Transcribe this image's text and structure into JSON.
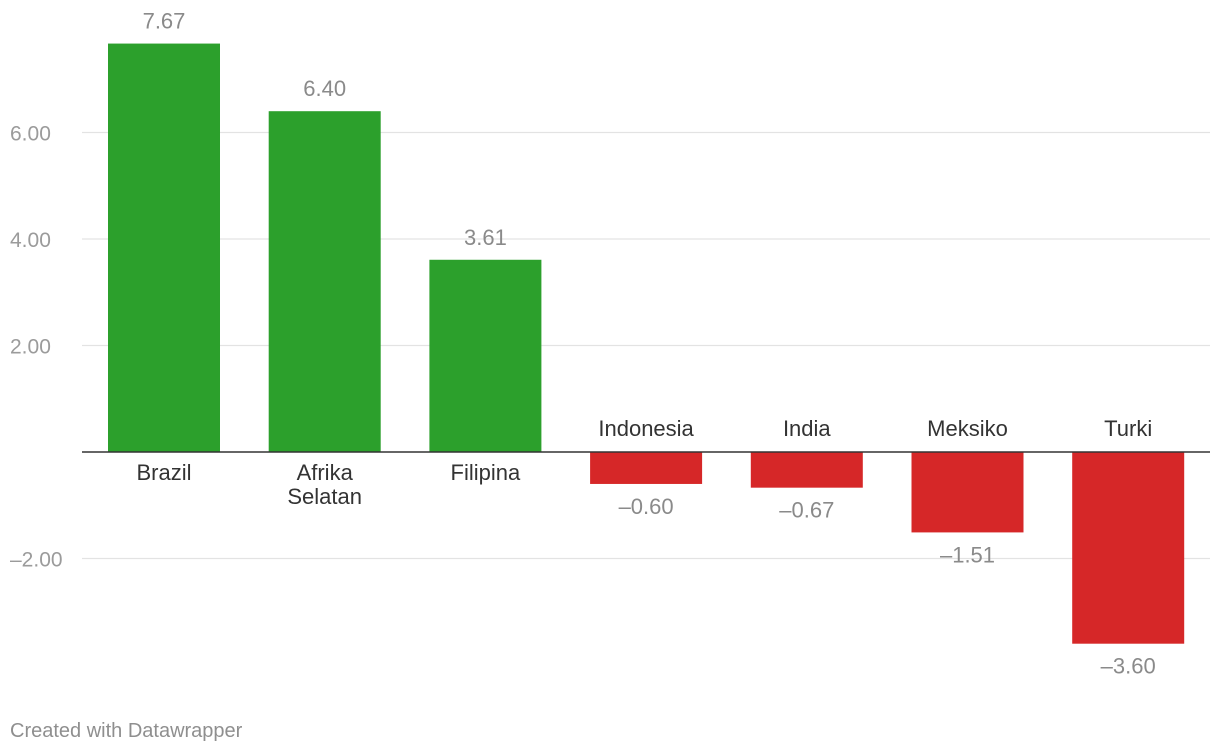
{
  "chart_data": {
    "type": "bar",
    "categories": [
      "Brazil",
      "Afrika Selatan",
      "Filipina",
      "Indonesia",
      "India",
      "Meksiko",
      "Turki"
    ],
    "category_lines": [
      [
        "Brazil"
      ],
      [
        "Afrika",
        "Selatan"
      ],
      [
        "Filipina"
      ],
      [
        "Indonesia"
      ],
      [
        "India"
      ],
      [
        "Meksiko"
      ],
      [
        "Turki"
      ]
    ],
    "values": [
      7.67,
      6.4,
      3.61,
      -0.6,
      -0.67,
      -1.51,
      -3.6
    ],
    "value_labels": [
      "7.67",
      "6.40",
      "3.61",
      "–0.60",
      "–0.67",
      "–1.51",
      "–3.60"
    ],
    "yticks": [
      6,
      4,
      2,
      -2
    ],
    "ytick_labels": [
      "6.00",
      "4.00",
      "2.00",
      "–2.00"
    ],
    "ylim": [
      -4.44,
      8.4
    ],
    "positive_color": "#2ca02c",
    "negative_color": "#d62728",
    "title": "",
    "xlabel": "",
    "ylabel": ""
  },
  "footer": {
    "credit": "Created with Datawrapper"
  }
}
